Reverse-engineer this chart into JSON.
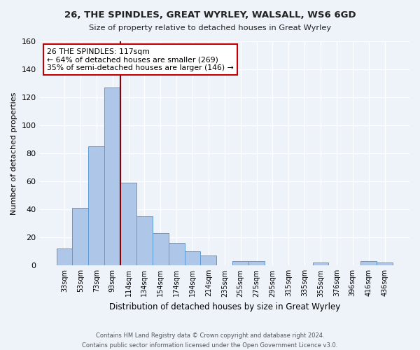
{
  "title": "26, THE SPINDLES, GREAT WYRLEY, WALSALL, WS6 6GD",
  "subtitle": "Size of property relative to detached houses in Great Wyrley",
  "xlabel": "Distribution of detached houses by size in Great Wyrley",
  "ylabel": "Number of detached properties",
  "bin_labels": [
    "33sqm",
    "53sqm",
    "73sqm",
    "93sqm",
    "114sqm",
    "134sqm",
    "154sqm",
    "174sqm",
    "194sqm",
    "214sqm",
    "235sqm",
    "255sqm",
    "275sqm",
    "295sqm",
    "315sqm",
    "335sqm",
    "355sqm",
    "376sqm",
    "396sqm",
    "416sqm",
    "436sqm"
  ],
  "bin_heights": [
    12,
    41,
    85,
    127,
    59,
    35,
    23,
    16,
    10,
    7,
    0,
    3,
    3,
    0,
    0,
    0,
    2,
    0,
    0,
    3,
    2
  ],
  "bar_color": "#aec6e8",
  "bar_edge_color": "#5b9bd5",
  "vline_color": "#8b0000",
  "annotation_text": "26 THE SPINDLES: 117sqm\n← 64% of detached houses are smaller (269)\n35% of semi-detached houses are larger (146) →",
  "annotation_box_color": "#ffffff",
  "annotation_box_edge": "#c00000",
  "ylim": [
    0,
    160
  ],
  "yticks": [
    0,
    20,
    40,
    60,
    80,
    100,
    120,
    140,
    160
  ],
  "footer_line1": "Contains HM Land Registry data © Crown copyright and database right 2024.",
  "footer_line2": "Contains public sector information licensed under the Open Government Licence v3.0.",
  "bg_color": "#eef2f9",
  "plot_bg_color": "#eef2f9"
}
